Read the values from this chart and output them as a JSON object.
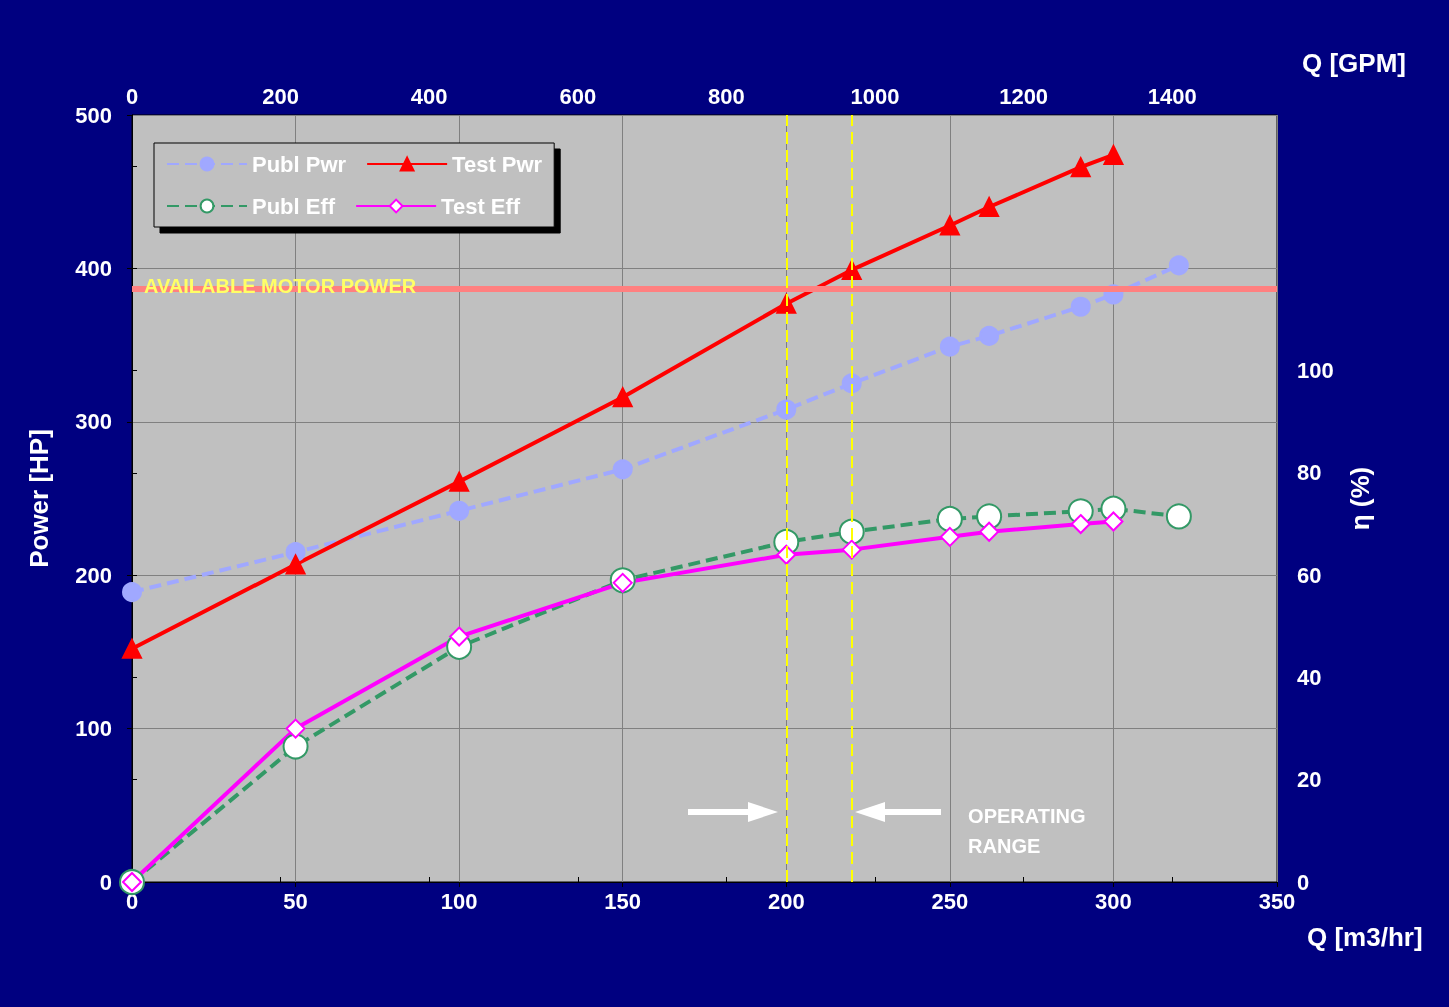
{
  "chart_data": {
    "type": "line",
    "xlabel": "Q [m3/hr]",
    "x2label": "Q [GPM]",
    "ylabel": "Power [HP]",
    "y2label": "η (%)",
    "xlim": [
      0,
      350
    ],
    "xticks": [
      0,
      50,
      100,
      150,
      200,
      250,
      300,
      350
    ],
    "x2lim": [
      0,
      1541
    ],
    "x2ticks": [
      0,
      200,
      400,
      600,
      800,
      1000,
      1200,
      1400
    ],
    "ylim": [
      0,
      500
    ],
    "yticks": [
      0,
      100,
      200,
      300,
      400,
      500
    ],
    "y2lim": [
      0,
      150
    ],
    "y2ticks": [
      0,
      20,
      40,
      60,
      80,
      100,
      {
        "value": 120,
        "label": null
      },
      {
        "value": 140,
        "label": null
      }
    ],
    "grid": true,
    "legend": "top left",
    "series": [
      {
        "name": "Publ Pwr",
        "color": "#a0a8ff",
        "marker": "circle",
        "line_style": "dashed",
        "x": [
          0,
          50,
          100,
          150,
          200,
          220,
          250,
          262,
          290,
          300,
          320
        ],
        "values": [
          189,
          215,
          242,
          269,
          308,
          325,
          349,
          356,
          375,
          383,
          402
        ]
      },
      {
        "name": "Test Pwr",
        "color": "#ff0000",
        "marker": "triangle",
        "line_style": "solid",
        "x": [
          0,
          50,
          100,
          150,
          200,
          220,
          250,
          262,
          290,
          300
        ],
        "values": [
          152,
          207,
          261,
          316,
          377,
          399,
          428,
          440,
          466,
          474
        ]
      },
      {
        "name": "Publ Eff",
        "axis": "y2",
        "color": "#339966",
        "marker": "circle",
        "line_style": "dashed",
        "x": [
          0,
          50,
          100,
          150,
          200,
          220,
          250,
          262,
          290,
          300,
          320
        ],
        "values": [
          0,
          26.5,
          46,
          59,
          66.5,
          68.5,
          71,
          71.5,
          72.5,
          73,
          71.5
        ]
      },
      {
        "name": "Test Eff",
        "axis": "y2",
        "color": "#ff00ff",
        "marker": "diamond",
        "line_style": "solid",
        "x": [
          0,
          50,
          100,
          150,
          200,
          220,
          250,
          262,
          290,
          300
        ],
        "values": [
          0,
          30,
          48,
          58.5,
          64,
          65,
          67.5,
          68.5,
          70,
          70.5
        ]
      }
    ],
    "ref_lines": [
      {
        "axis": "y",
        "value": 387,
        "label": "AVAILABLE MOTOR POWER",
        "color": "#ff8080",
        "line_style": "solid"
      },
      {
        "axis": "x",
        "value": 200,
        "label": null,
        "color": "#ffff00",
        "line_style": "dashed"
      },
      {
        "axis": "x",
        "value": 220,
        "label": null,
        "color": "#ffff00",
        "line_style": "dashed"
      }
    ],
    "annotations": [
      "OPERATING RANGE"
    ]
  }
}
